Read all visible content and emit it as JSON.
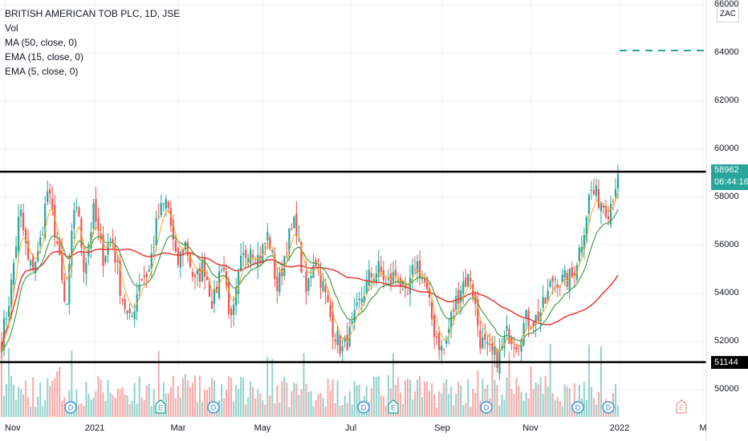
{
  "header": {
    "title": "BRITISH AMERICAN TOB PLC, 1D, JSE",
    "indicators": [
      "Vol",
      "MA (50, close, 0)",
      "EMA (15, close, 0)",
      "EMA (5, close, 0)"
    ]
  },
  "currency": "ZAC",
  "price_tags": {
    "resistance": "59063",
    "last_price": "58962",
    "countdown": "06:44:16",
    "support": "51144"
  },
  "colors": {
    "up": "#26a69a",
    "down": "#ef5350",
    "ma50": "#e53935",
    "ema15": "#43a047",
    "ema5": "#f9a825",
    "level_line": "#000000",
    "target_dash": "#26a69a"
  },
  "chart_data": {
    "type": "candlestick",
    "y_ticks": [
      "66000",
      "64000",
      "62000",
      "60000",
      "58000",
      "56000",
      "54000",
      "52000",
      "50000"
    ],
    "x_ticks": [
      "Nov",
      "2021",
      "Mar",
      "May",
      "Jul",
      "Sep",
      "Nov",
      "2022",
      "M"
    ],
    "ylim": [
      48800,
      66200
    ],
    "horizontal_levels": [
      59063,
      51144
    ],
    "target_level": 64100,
    "event_markers": [
      "D",
      "E",
      "D",
      "D",
      "E",
      "D",
      "D",
      "D",
      "E"
    ],
    "close_path": [
      52000,
      54200,
      57500,
      55000,
      55600,
      58300,
      56200,
      53000,
      58200,
      55000,
      57400,
      55500,
      56400,
      54000,
      52700,
      54600,
      54900,
      57200,
      57900,
      55100,
      56100,
      54400,
      55200,
      53500,
      55500,
      52600,
      55200,
      56100,
      55400,
      56500,
      54100,
      56100,
      57000,
      53800,
      55600,
      54200,
      52600,
      51600,
      52400,
      53700,
      54700,
      55000,
      54400,
      54900,
      53600,
      55400,
      54400,
      52500,
      51500,
      53200,
      54400,
      54700,
      52100,
      51500,
      51300,
      52400,
      52000,
      52900,
      52900,
      53500,
      54700,
      54500,
      54700,
      56100,
      58300,
      57900,
      57500,
      58962
    ]
  }
}
